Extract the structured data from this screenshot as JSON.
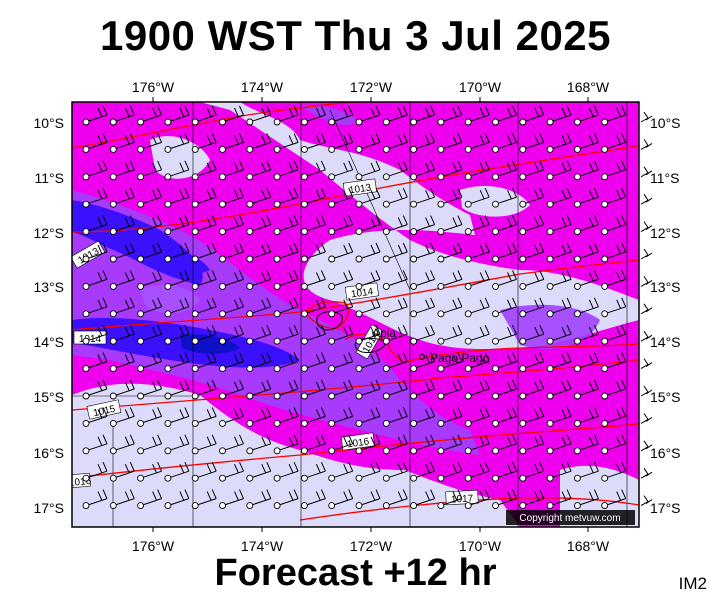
{
  "title": "1900 WST Thu 3 Jul 2025",
  "footer": "Forecast +12 hr",
  "corner_code": "IM2",
  "copyright": "Copyright metvuw.com",
  "axes": {
    "lon_labels": [
      "176°W",
      "174°W",
      "172°W",
      "170°W",
      "168°W"
    ],
    "lat_labels": [
      "10°S",
      "11°S",
      "12°S",
      "13°S",
      "14°S",
      "15°S",
      "16°S",
      "17°S"
    ]
  },
  "places": [
    {
      "name": "Apia",
      "lat": -13.83,
      "lon": -171.76
    },
    {
      "name": "Pago Pago",
      "lat": -14.28,
      "lon": -170.7
    }
  ],
  "isobars": [
    {
      "label": "1013"
    },
    {
      "label": "1013"
    },
    {
      "label": "1014"
    },
    {
      "label": "1014"
    },
    {
      "label": "1014"
    },
    {
      "label": "1015"
    },
    {
      "label": "1016"
    },
    {
      "label": "1016"
    },
    {
      "label": "1017"
    }
  ],
  "colors": {
    "background_field": "#ee00ee",
    "light_area": "#dcdcfa",
    "mid_purple": "#a040ff",
    "deep_blue": "#3a10ff",
    "core_blue": "#1010c8",
    "isobar_line": "#ff0000",
    "wind_barb": "#000000"
  }
}
